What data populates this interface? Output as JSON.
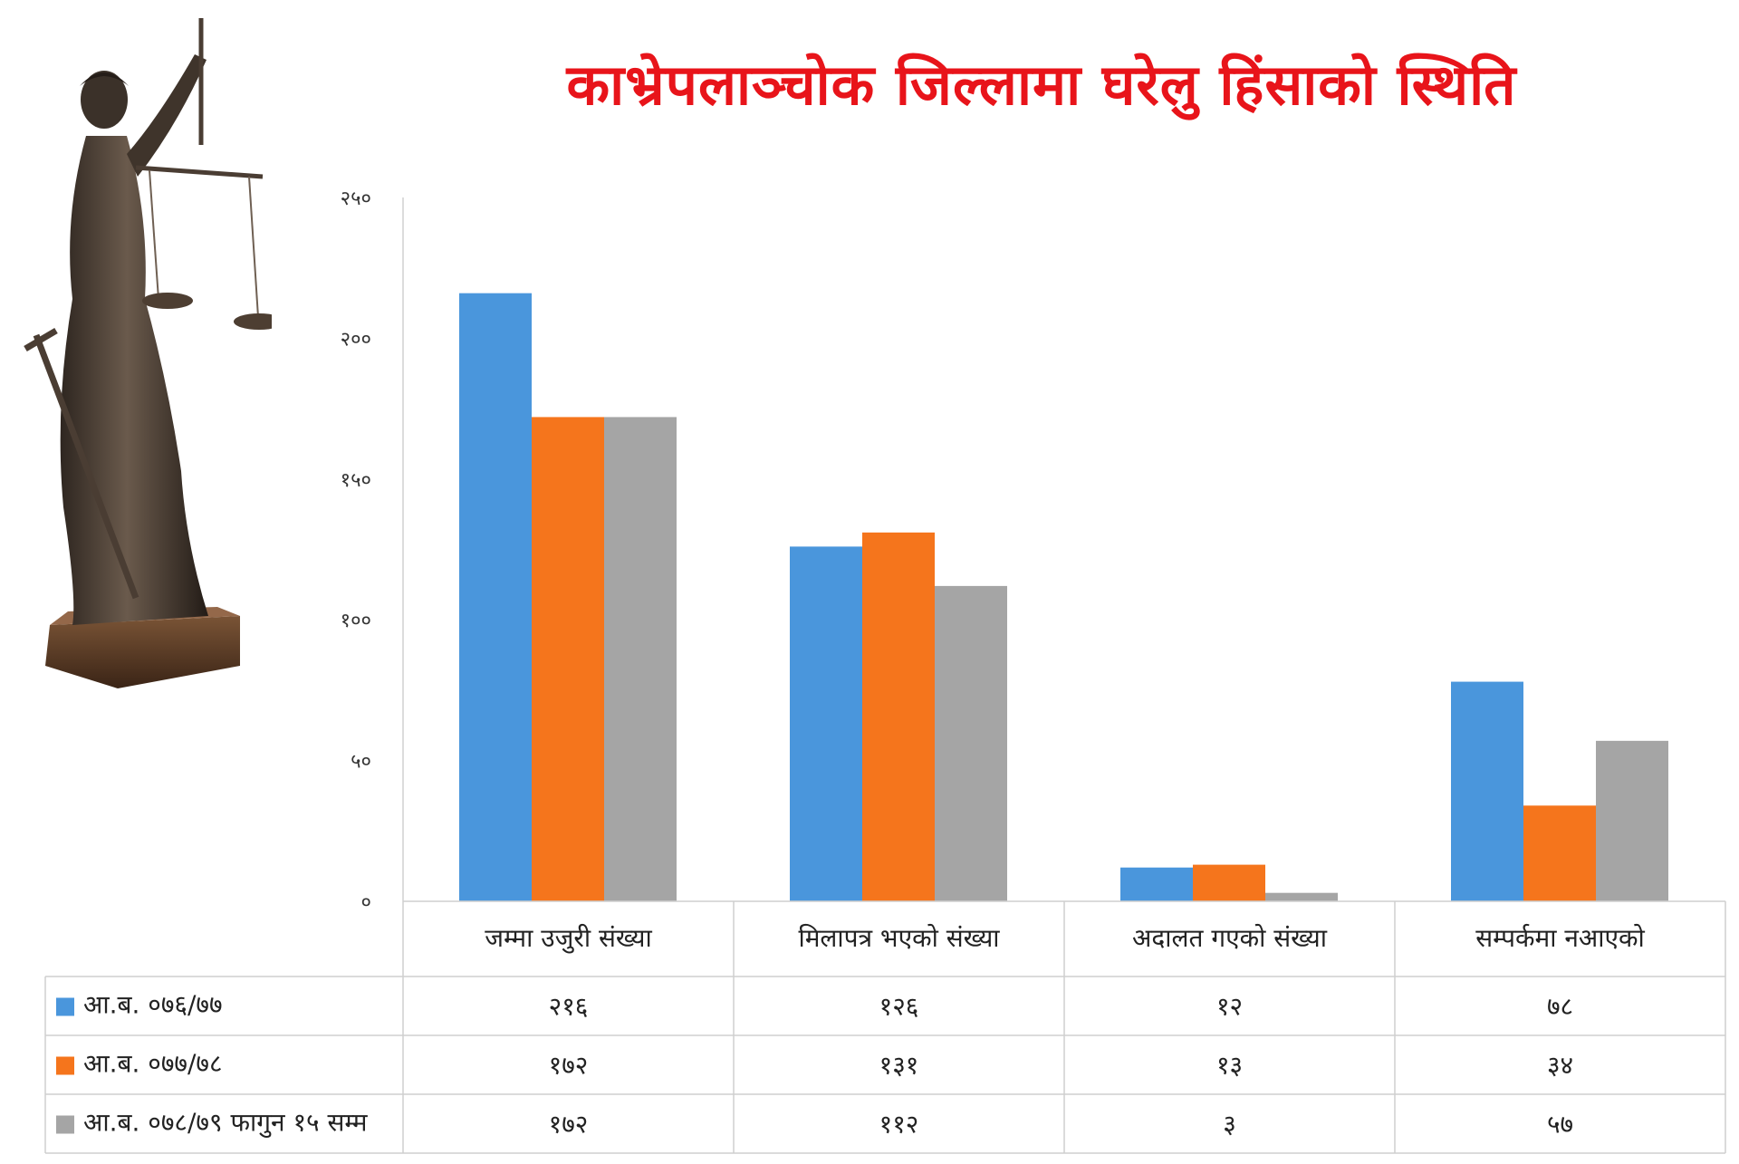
{
  "title": "काभ्रेपलाञ्चोक जिल्लामा घरेलु हिंसाको स्थिति",
  "statue": {
    "icon": "lady-justice-statue-icon"
  },
  "chart_data": {
    "type": "bar",
    "title": "काभ्रेपलाञ्चोक जिल्लामा घरेलु हिंसाको स्थिति",
    "categories": [
      "जम्मा उजुरी संख्या",
      "मिलापत्र भएको संख्या",
      "अदालत गएको संख्या",
      "सम्पर्कमा नआएको"
    ],
    "series": [
      {
        "name": "आ.ब. ०७६/७७",
        "color": "#4a96dc",
        "values": [
          216,
          126,
          12,
          78
        ],
        "labels": [
          "२१६",
          "१२६",
          "१२",
          "७८"
        ]
      },
      {
        "name": "आ.ब. ०७७/७८",
        "color": "#f5751c",
        "values": [
          172,
          131,
          13,
          34
        ],
        "labels": [
          "१७२",
          "१३१",
          "१३",
          "३४"
        ]
      },
      {
        "name": "आ.ब. ०७८/७९ फागुन १५ सम्म",
        "color": "#a5a5a5",
        "values": [
          172,
          112,
          3,
          57
        ],
        "labels": [
          "१७२",
          "११२",
          "३",
          "५७"
        ]
      }
    ],
    "ylim": [
      0,
      250
    ],
    "yticks": [
      0,
      50,
      100,
      150,
      200,
      250
    ],
    "ytick_labels": [
      "०",
      "५०",
      "१००",
      "१५०",
      "२००",
      "२५०"
    ],
    "grid": false,
    "legend": "data-table"
  }
}
